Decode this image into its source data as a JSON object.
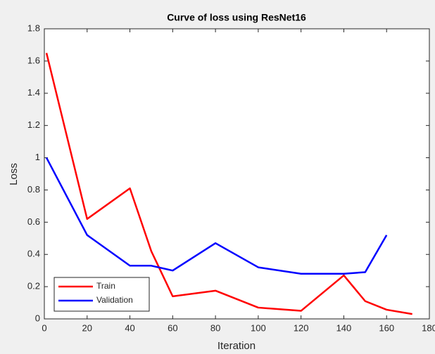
{
  "chart_data": {
    "type": "line",
    "title": "Curve of loss using ResNet16",
    "xlabel": "Iteration",
    "ylabel": "Loss",
    "x": [
      1,
      20,
      40,
      50,
      60,
      80,
      100,
      120,
      140,
      150,
      160,
      172
    ],
    "series": [
      {
        "name": "Train",
        "color": "#ff0000",
        "values": [
          1.65,
          0.62,
          0.81,
          0.42,
          0.14,
          0.175,
          0.07,
          0.05,
          0.27,
          0.11,
          0.057,
          0.03
        ]
      },
      {
        "name": "Validation",
        "color": "#0000ff",
        "values": [
          1.0,
          0.52,
          0.33,
          0.33,
          0.3,
          0.47,
          0.32,
          0.28,
          0.28,
          0.29,
          0.52,
          null
        ]
      }
    ],
    "xlim": [
      0,
      180
    ],
    "xticks": [
      0,
      20,
      40,
      60,
      80,
      100,
      120,
      140,
      160,
      180
    ],
    "ylim": [
      0,
      1.8
    ],
    "yticks": [
      0,
      0.2,
      0.4,
      0.6,
      0.8,
      1,
      1.2,
      1.4,
      1.6,
      1.8
    ],
    "legend": "lower left",
    "grid": false
  }
}
